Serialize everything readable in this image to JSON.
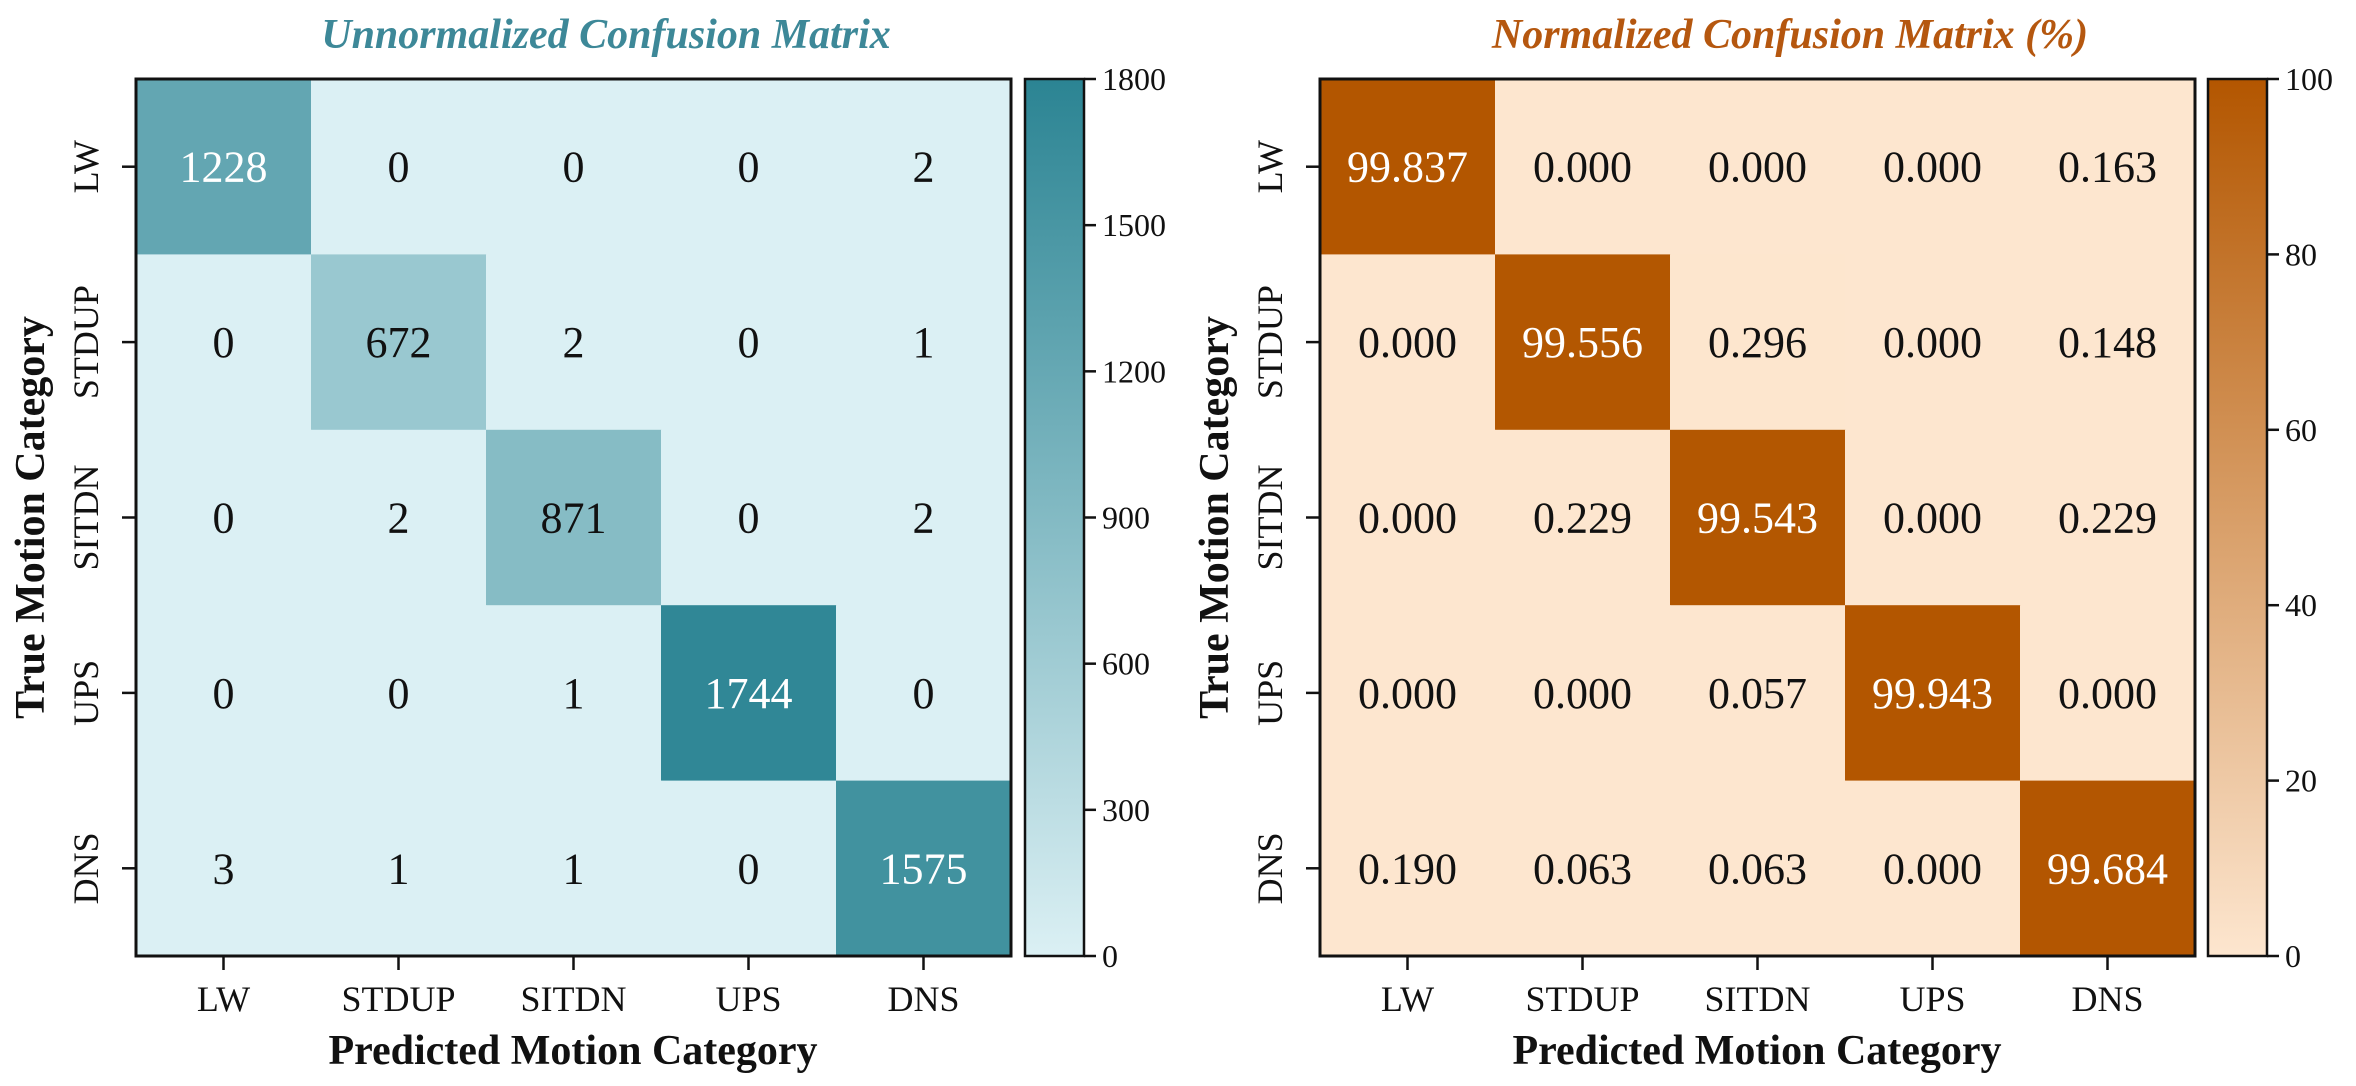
{
  "chart_data": [
    {
      "type": "heatmap",
      "title": "Unnormalized Confusion Matrix",
      "xlabel": "Predicted Motion Category",
      "ylabel": "True Motion Category",
      "categories_x": [
        "LW",
        "STDUP",
        "SITDN",
        "UPS",
        "DNS"
      ],
      "categories_y": [
        "LW",
        "STDUP",
        "SITDN",
        "UPS",
        "DNS"
      ],
      "values": [
        [
          1228,
          0,
          0,
          0,
          2
        ],
        [
          0,
          672,
          2,
          0,
          1
        ],
        [
          0,
          2,
          871,
          0,
          2
        ],
        [
          0,
          0,
          1,
          1744,
          0
        ],
        [
          3,
          1,
          1,
          0,
          1575
        ]
      ],
      "value_labels": [
        [
          "1228",
          "0",
          "0",
          "0",
          "2"
        ],
        [
          "0",
          "672",
          "2",
          "0",
          "1"
        ],
        [
          "0",
          "2",
          "871",
          "0",
          "2"
        ],
        [
          "0",
          "0",
          "1",
          "1744",
          "0"
        ],
        [
          "3",
          "1",
          "1",
          "0",
          "1575"
        ]
      ],
      "colorbar": {
        "min": 0,
        "max": 1800,
        "ticks": [
          0,
          300,
          600,
          900,
          1200,
          1500,
          1800
        ]
      },
      "color_low": "#dbf0f4",
      "color_high": "#2b8493",
      "title_color": "#3d8898",
      "text_dark": "#111111",
      "text_light": "#ffffff"
    },
    {
      "type": "heatmap",
      "title": "Normalized Confusion Matrix (%)",
      "xlabel": "Predicted Motion Category",
      "ylabel": "True Motion Category",
      "categories_x": [
        "LW",
        "STDUP",
        "SITDN",
        "UPS",
        "DNS"
      ],
      "categories_y": [
        "LW",
        "STDUP",
        "SITDN",
        "UPS",
        "DNS"
      ],
      "values": [
        [
          99.837,
          0.0,
          0.0,
          0.0,
          0.163
        ],
        [
          0.0,
          99.556,
          0.296,
          0.0,
          0.148
        ],
        [
          0.0,
          0.229,
          99.543,
          0.0,
          0.229
        ],
        [
          0.0,
          0.0,
          0.057,
          99.943,
          0.0
        ],
        [
          0.19,
          0.063,
          0.063,
          0.0,
          99.684
        ]
      ],
      "value_labels": [
        [
          "99.837",
          "0.000",
          "0.000",
          "0.000",
          "0.163"
        ],
        [
          "0.000",
          "99.556",
          "0.296",
          "0.000",
          "0.148"
        ],
        [
          "0.000",
          "0.229",
          "99.543",
          "0.000",
          "0.229"
        ],
        [
          "0.000",
          "0.000",
          "0.057",
          "99.943",
          "0.000"
        ],
        [
          "0.190",
          "0.063",
          "0.063",
          "0.000",
          "99.684"
        ]
      ],
      "colorbar": {
        "min": 0,
        "max": 100,
        "ticks": [
          0,
          20,
          40,
          60,
          80,
          100
        ]
      },
      "color_low": "#fde6cf",
      "color_high": "#b35600",
      "title_color": "#b5570f",
      "text_dark": "#111111",
      "text_light": "#ffffff"
    }
  ]
}
